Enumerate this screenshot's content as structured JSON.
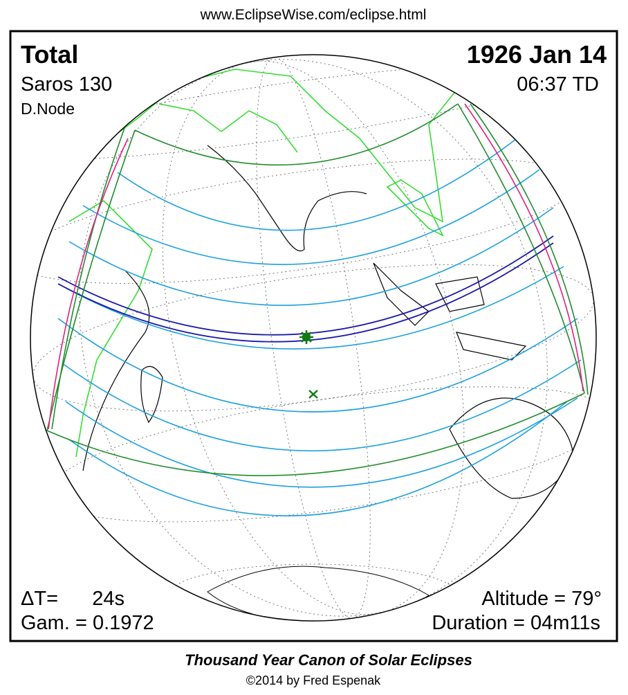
{
  "header": {
    "url": "www.EclipseWise.com/eclipse.html"
  },
  "panel": {
    "eclipse_type": "Total",
    "date": "1926 Jan 14",
    "saros": "Saros 130",
    "time": "06:37 TD",
    "node": "D.Node",
    "delta_t_label": "ΔT=",
    "delta_t_value": "24s",
    "gamma": "Gam. = 0.1972",
    "altitude": "Altitude = 79°",
    "duration": "Duration = 04m11s"
  },
  "footer": {
    "title": "Thousand Year Canon of Solar Eclipses",
    "credit": "©2014 by Fred Espenak"
  }
}
